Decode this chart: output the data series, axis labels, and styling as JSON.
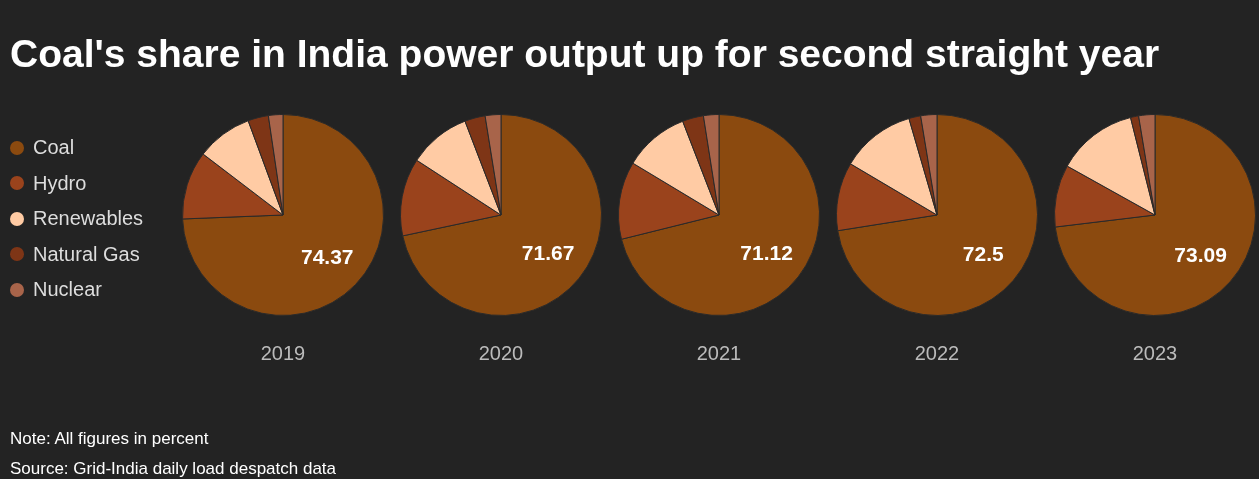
{
  "chart_data": [
    {
      "type": "pie",
      "title": "Coal's share in India power output up for second straight year",
      "xlabel": "2019",
      "legend": "left",
      "categories": [
        "Coal",
        "Hydro",
        "Renewables",
        "Natural Gas",
        "Nuclear"
      ],
      "values": [
        74.37,
        11,
        9,
        3.3,
        2.33
      ],
      "colors": [
        "#8b4a0f",
        "#9a431c",
        "#ffcba4",
        "#7e3516",
        "#a8644a"
      ],
      "value_labels": [
        "74.37",
        null,
        null,
        null,
        null
      ],
      "annotations": [
        "Note: All figures in percent",
        "Source: Grid-India daily load despatch data"
      ]
    },
    {
      "type": "pie",
      "xlabel": "2020",
      "values": [
        71.67,
        12.5,
        10,
        3.3,
        2.53
      ],
      "colors": [
        "#8b4a0f",
        "#9a431c",
        "#ffcba4",
        "#7e3516",
        "#a8644a"
      ],
      "value_labels": [
        "71.67",
        null,
        null,
        null,
        null
      ]
    },
    {
      "type": "pie",
      "xlabel": "2021",
      "values": [
        71.12,
        12.5,
        10.5,
        3.4,
        2.48
      ],
      "colors": [
        "#8b4a0f",
        "#9a431c",
        "#ffcba4",
        "#7e3516",
        "#a8644a"
      ],
      "value_labels": [
        "71.12",
        null,
        null,
        null,
        null
      ]
    },
    {
      "type": "pie",
      "xlabel": "2022",
      "values": [
        72.5,
        11,
        12,
        1.9,
        2.6
      ],
      "colors": [
        "#8b4a0f",
        "#9a431c",
        "#ffcba4",
        "#7e3516",
        "#a8644a"
      ],
      "value_labels": [
        "72.5",
        null,
        null,
        null,
        null
      ]
    },
    {
      "type": "pie",
      "xlabel": "2023",
      "values": [
        73.09,
        10,
        13,
        1.3,
        2.61
      ],
      "colors": [
        "#8b4a0f",
        "#9a431c",
        "#ffcba4",
        "#7e3516",
        "#a8644a"
      ],
      "value_labels": [
        "73.09",
        null,
        null,
        null,
        null
      ]
    }
  ]
}
